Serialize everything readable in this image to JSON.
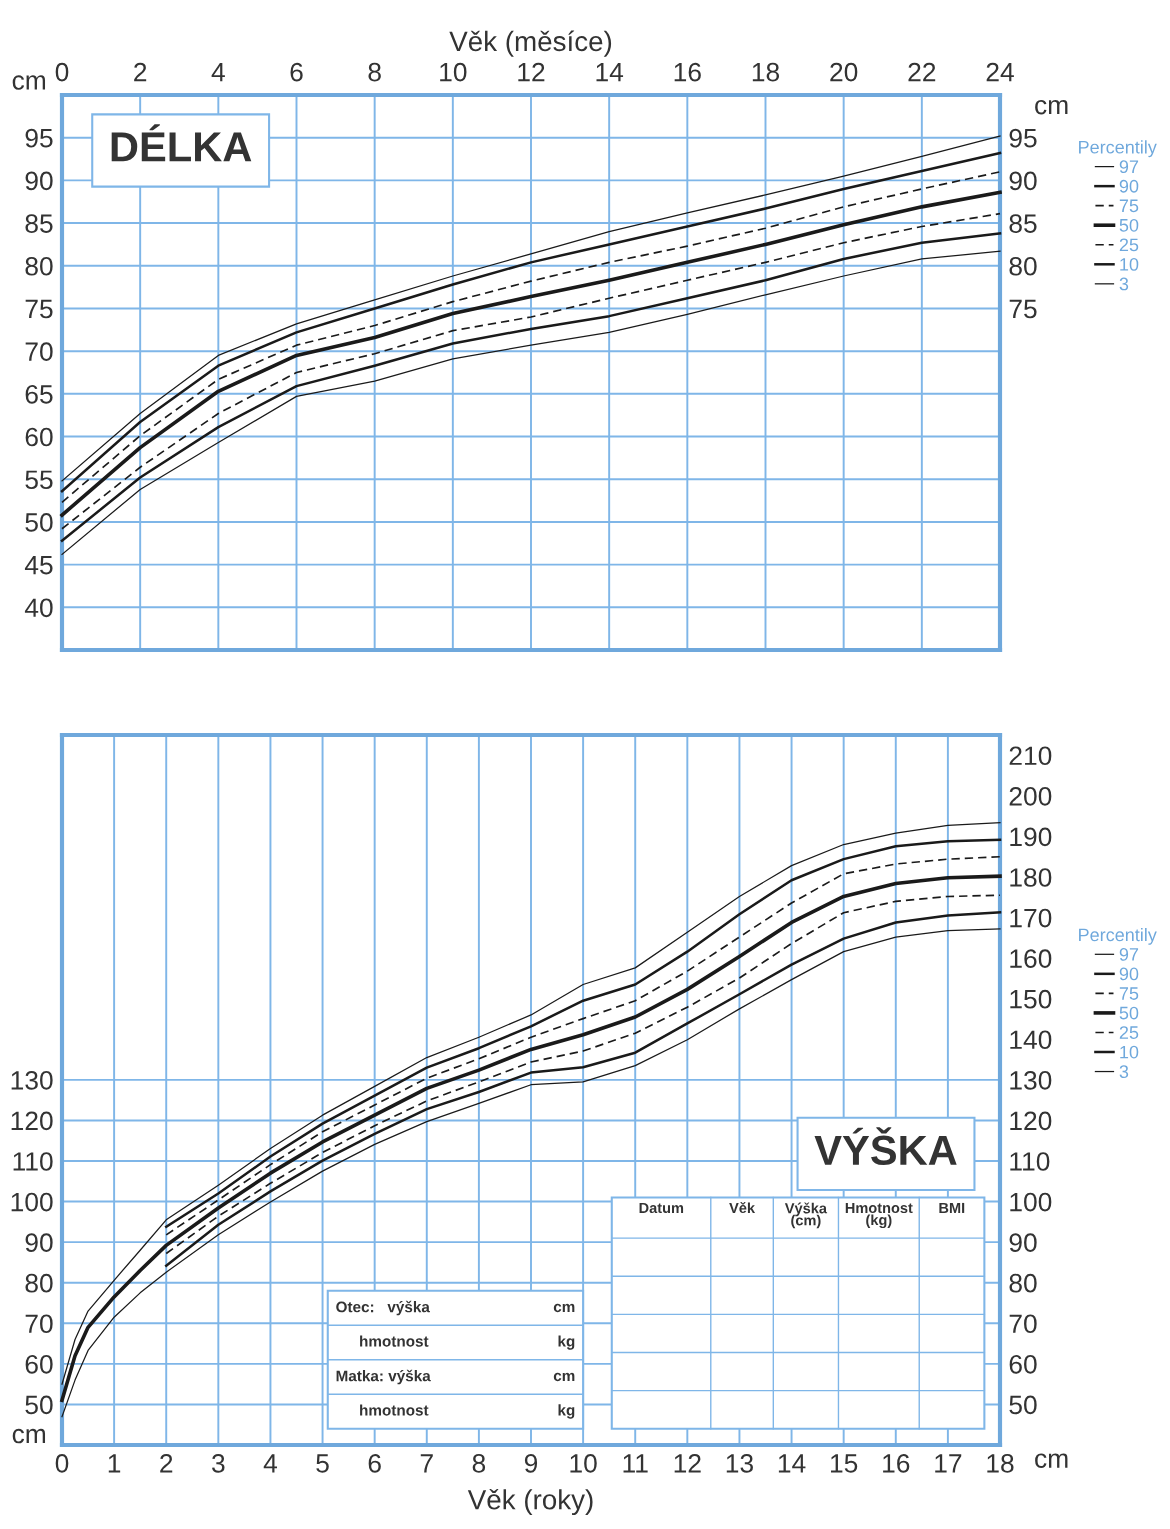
{
  "chart_data": [
    {
      "type": "line",
      "title": "DÉLKA",
      "xlabel": "Věk (měsíce)",
      "ylabel": "cm",
      "y2label": "cm",
      "x": [
        0,
        2,
        4,
        6,
        8,
        10,
        12,
        14,
        16,
        18,
        20,
        22,
        24
      ],
      "xlim": [
        0,
        24
      ],
      "xticks": [
        0,
        2,
        4,
        6,
        8,
        10,
        12,
        14,
        16,
        18,
        20,
        22,
        24
      ],
      "ylim": [
        35,
        100
      ],
      "yticks": [
        40,
        45,
        50,
        55,
        60,
        65,
        70,
        75,
        80,
        85,
        90,
        95
      ],
      "y2lim": [
        35,
        100
      ],
      "y2ticks": [
        75,
        80,
        85,
        90,
        95
      ],
      "grid": true,
      "legend": "right",
      "legend_title": "Percentily",
      "series": [
        {
          "name": "97",
          "color": "#1a1a1a",
          "line_style": "solid",
          "values": [
            54.8,
            62.7,
            69.5,
            73.2,
            76.0,
            78.8,
            81.4,
            84.0,
            86.2,
            88.3,
            90.5,
            92.8,
            95.2
          ]
        },
        {
          "name": "90",
          "color": "#1a1a1a",
          "line_style": "solid",
          "values": [
            53.6,
            61.7,
            68.3,
            72.2,
            75.0,
            77.8,
            80.4,
            82.5,
            84.6,
            86.7,
            89.0,
            91.1,
            93.2
          ]
        },
        {
          "name": "75",
          "color": "#1a1a1a",
          "line_style": "dashed",
          "values": [
            52.3,
            60.1,
            66.7,
            70.7,
            73.0,
            75.8,
            78.2,
            80.4,
            82.3,
            84.4,
            86.9,
            89.0,
            91.0
          ]
        },
        {
          "name": "50",
          "color": "#1a1a1a",
          "line_style": "solid",
          "values": [
            50.8,
            58.7,
            65.3,
            69.5,
            71.6,
            74.4,
            76.4,
            78.3,
            80.4,
            82.5,
            84.8,
            86.9,
            88.6
          ]
        },
        {
          "name": "25",
          "color": "#1a1a1a",
          "line_style": "dashed",
          "values": [
            49.2,
            56.4,
            62.7,
            67.5,
            69.7,
            72.4,
            74.0,
            76.2,
            78.3,
            80.4,
            82.7,
            84.6,
            86.1
          ]
        },
        {
          "name": "10",
          "color": "#1a1a1a",
          "line_style": "solid",
          "values": [
            47.8,
            55.2,
            61.1,
            65.9,
            68.3,
            70.9,
            72.6,
            74.1,
            76.2,
            78.3,
            80.8,
            82.7,
            83.8
          ]
        },
        {
          "name": "3",
          "color": "#1a1a1a",
          "line_style": "solid",
          "values": [
            46.2,
            53.8,
            59.3,
            64.7,
            66.5,
            69.1,
            70.7,
            72.2,
            74.3,
            76.6,
            78.8,
            80.8,
            81.7
          ]
        }
      ]
    },
    {
      "type": "line",
      "title": "VÝŠKA",
      "xlabel": "Věk (roky)",
      "ylabel": "cm",
      "y2label": "cm",
      "x": [
        0,
        0.25,
        0.5,
        1,
        1.5,
        2,
        3,
        4,
        5,
        6,
        7,
        8,
        9,
        10,
        11,
        12,
        13,
        14,
        15,
        16,
        17,
        18
      ],
      "xlim": [
        0,
        18
      ],
      "xticks": [
        0,
        1,
        2,
        3,
        4,
        5,
        6,
        7,
        8,
        9,
        10,
        11,
        12,
        13,
        14,
        15,
        16,
        17,
        18
      ],
      "ylim": [
        40,
        215
      ],
      "yticks": [
        50,
        60,
        70,
        80,
        90,
        100,
        110,
        120,
        130
      ],
      "y2lim": [
        40,
        215
      ],
      "y2ticks": [
        50,
        60,
        70,
        80,
        90,
        100,
        110,
        120,
        130,
        140,
        150,
        160,
        170,
        180,
        190,
        200,
        210
      ],
      "grid": true,
      "legend": "right",
      "legend_title": "Percentily",
      "annotations": [
        "Otec:   výška",
        "cm",
        "hmotnost",
        "kg",
        "Matka: výška",
        "cm",
        "hmotnost",
        "kg",
        "Datum",
        "Věk",
        "Výška\n(cm)",
        "Hmotnost\n(kg)",
        "BMI"
      ],
      "series": [
        {
          "name": "97",
          "color": "#1a1a1a",
          "line_style": "solid",
          "values": [
            55,
            66,
            73,
            80.6,
            88,
            95.5,
            104,
            113.1,
            121.3,
            128.4,
            135.5,
            140.5,
            146,
            153.5,
            157.6,
            166.4,
            175.2,
            182.8,
            188,
            190.8,
            192.7,
            193.4
          ]
        },
        {
          "name": "90",
          "color": "#1a1a1a",
          "line_style": "solid",
          "values": [
            null,
            null,
            null,
            null,
            null,
            93.8,
            102,
            111.1,
            119.2,
            126.1,
            133,
            137.8,
            143.2,
            149.5,
            153.5,
            161.6,
            170.8,
            179.2,
            184.4,
            187.6,
            188.8,
            189.2
          ]
        },
        {
          "name": "75",
          "color": "#1a1a1a",
          "line_style": "dashed",
          "values": [
            null,
            null,
            null,
            null,
            null,
            91.8,
            100.4,
            109.1,
            117.2,
            123.8,
            130.4,
            135.2,
            140.5,
            145.1,
            149.5,
            156.8,
            165.2,
            173.6,
            180.8,
            183.2,
            184.4,
            185
          ]
        },
        {
          "name": "50",
          "color": "#1a1a1a",
          "line_style": "solid",
          "values": [
            51,
            62,
            69,
            76.5,
            83,
            89.2,
            98.4,
            107,
            114.7,
            121.3,
            127.9,
            132.4,
            137.5,
            141.1,
            145.5,
            152.3,
            160.4,
            168.8,
            175.2,
            178.4,
            179.8,
            180.2
          ]
        },
        {
          "name": "25",
          "color": "#1a1a1a",
          "line_style": "dashed",
          "values": [
            null,
            null,
            null,
            null,
            null,
            87.2,
            96.4,
            104.5,
            112.1,
            118.7,
            124.8,
            129.5,
            134.4,
            137.1,
            141.5,
            147.9,
            155.1,
            163.6,
            171.2,
            174,
            175.2,
            175.5
          ]
        },
        {
          "name": "10",
          "color": "#1a1a1a",
          "line_style": "solid",
          "values": [
            null,
            null,
            null,
            null,
            null,
            84.2,
            94.3,
            102.5,
            110.1,
            116.7,
            122.8,
            127,
            131.8,
            133.1,
            136.7,
            143.9,
            151.1,
            158.4,
            164.8,
            168.8,
            170.5,
            171.3
          ]
        },
        {
          "name": "3",
          "color": "#1a1a1a",
          "line_style": "solid",
          "values": [
            47,
            56,
            63.3,
            71.5,
            77.5,
            82.6,
            91.8,
            99.9,
            107.5,
            114.1,
            119.7,
            124.2,
            128.8,
            129.5,
            133.5,
            139.9,
            147.5,
            154.7,
            161.6,
            165.2,
            166.8,
            167.2
          ]
        }
      ]
    }
  ]
}
